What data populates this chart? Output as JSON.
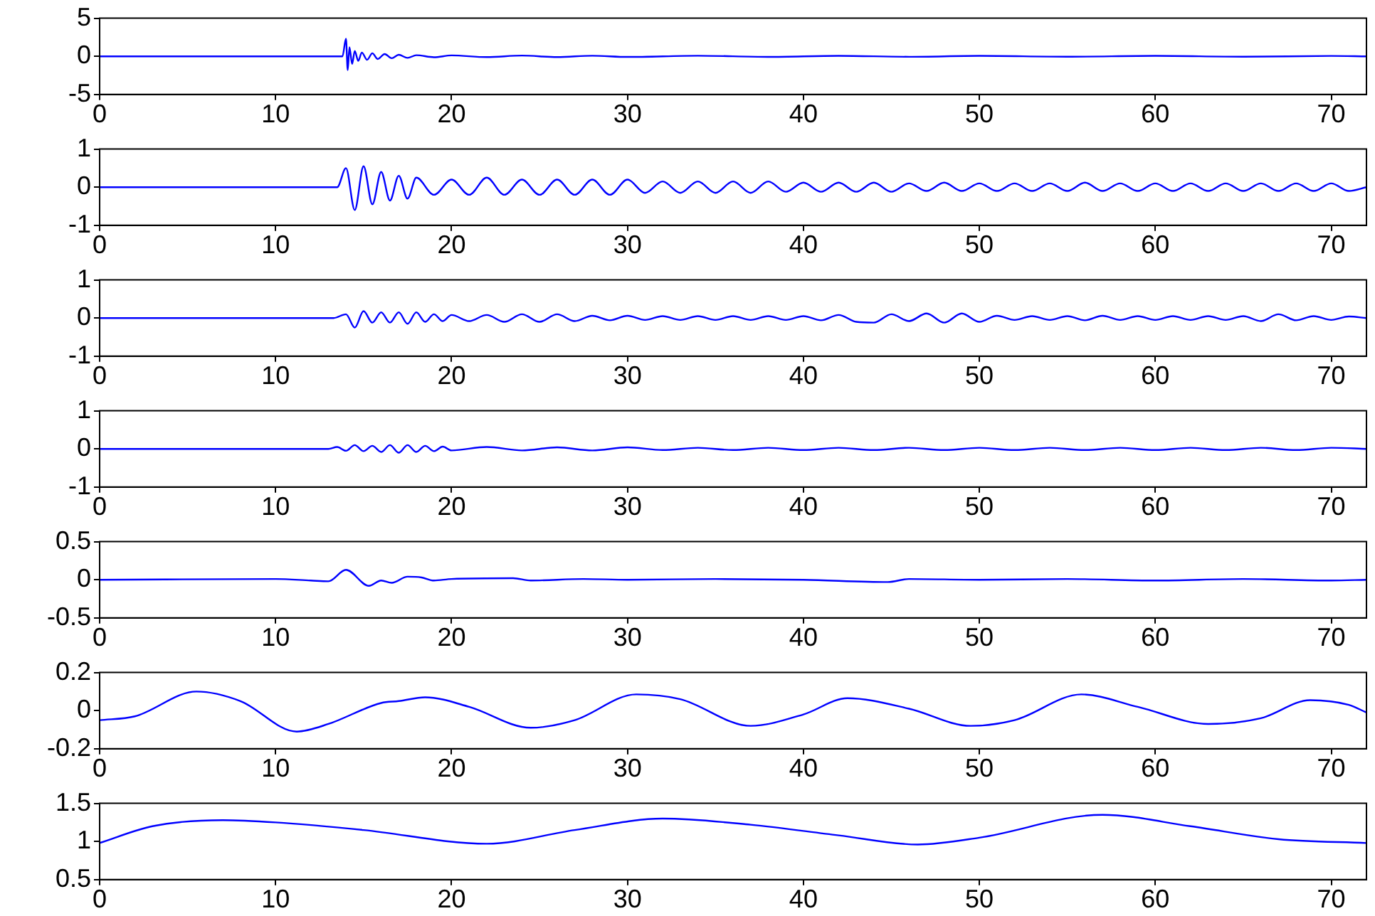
{
  "chart_data": [
    {
      "type": "line",
      "x": [
        0,
        13.8,
        14,
        14.1,
        14.2,
        14.35,
        14.5,
        14.7,
        14.9,
        15.2,
        15.5,
        15.8,
        16.2,
        16.6,
        17,
        17.5,
        18,
        19,
        20,
        22,
        24,
        26,
        28,
        30,
        34,
        38,
        42,
        46,
        50,
        55,
        60,
        65,
        70,
        72
      ],
      "xlim": [
        0,
        72
      ],
      "xticks": [
        0,
        10,
        20,
        30,
        40,
        50,
        60,
        70
      ],
      "ylim": [
        -5,
        5
      ],
      "yticks": [
        -5,
        0,
        5
      ],
      "series": [
        {
          "color": "#0000ff",
          "values": [
            0,
            0,
            2.3,
            -1.8,
            1.2,
            -1.0,
            0.7,
            -0.6,
            0.5,
            -0.45,
            0.4,
            -0.35,
            0.3,
            -0.25,
            0.2,
            -0.2,
            0.15,
            -0.12,
            0.12,
            -0.1,
            0.1,
            -0.1,
            0.08,
            -0.08,
            0.08,
            -0.07,
            0.07,
            -0.06,
            0.06,
            -0.05,
            0.06,
            -0.05,
            0.05,
            0
          ]
        }
      ]
    },
    {
      "type": "line",
      "x": [
        0,
        13.5,
        14,
        14.5,
        15,
        15.5,
        16,
        16.5,
        17,
        17.5,
        18,
        19,
        20,
        21,
        22,
        23,
        24,
        25,
        26,
        27,
        28,
        29,
        30,
        31,
        32,
        33,
        34,
        35,
        36,
        37,
        38,
        39,
        40,
        41,
        42,
        43,
        44,
        45,
        46,
        47,
        48,
        49,
        50,
        51,
        52,
        53,
        54,
        55,
        56,
        57,
        58,
        59,
        60,
        61,
        62,
        63,
        64,
        65,
        66,
        67,
        68,
        69,
        70,
        71,
        72
      ],
      "xlim": [
        0,
        72
      ],
      "xticks": [
        0,
        10,
        20,
        30,
        40,
        50,
        60,
        70
      ],
      "ylim": [
        -1,
        1
      ],
      "yticks": [
        -1,
        0,
        1
      ],
      "series": [
        {
          "color": "#0000ff",
          "values": [
            0,
            0,
            0.5,
            -0.6,
            0.55,
            -0.45,
            0.4,
            -0.35,
            0.3,
            -0.3,
            0.25,
            -0.2,
            0.2,
            -0.2,
            0.25,
            -0.2,
            0.2,
            -0.2,
            0.2,
            -0.2,
            0.2,
            -0.2,
            0.2,
            -0.15,
            0.15,
            -0.15,
            0.15,
            -0.15,
            0.15,
            -0.15,
            0.15,
            -0.12,
            0.12,
            -0.12,
            0.12,
            -0.12,
            0.12,
            -0.12,
            0.1,
            -0.1,
            0.12,
            -0.1,
            0.1,
            -0.1,
            0.1,
            -0.1,
            0.1,
            -0.1,
            0.12,
            -0.1,
            0.1,
            -0.1,
            0.1,
            -0.1,
            0.1,
            -0.1,
            0.1,
            -0.1,
            0.1,
            -0.1,
            0.1,
            -0.1,
            0.1,
            -0.1,
            0
          ]
        }
      ]
    },
    {
      "type": "line",
      "x": [
        0,
        13.3,
        14,
        14.5,
        15,
        15.5,
        16,
        16.5,
        17,
        17.5,
        18,
        18.5,
        19,
        19.5,
        20,
        21,
        22,
        23,
        24,
        25,
        26,
        27,
        28,
        29,
        30,
        31,
        32,
        33,
        34,
        35,
        36,
        37,
        38,
        39,
        40,
        41,
        42,
        43,
        44,
        45,
        46,
        47,
        48,
        49,
        50,
        51,
        52,
        53,
        54,
        55,
        56,
        57,
        58,
        59,
        60,
        61,
        62,
        63,
        64,
        65,
        66,
        67,
        68,
        69,
        70,
        71,
        72
      ],
      "xlim": [
        0,
        72
      ],
      "xticks": [
        0,
        10,
        20,
        30,
        40,
        50,
        60,
        70
      ],
      "ylim": [
        -1,
        1
      ],
      "yticks": [
        -1,
        0,
        1
      ],
      "series": [
        {
          "color": "#0000ff",
          "values": [
            0,
            0,
            0.1,
            -0.25,
            0.18,
            -0.12,
            0.15,
            -0.12,
            0.15,
            -0.15,
            0.15,
            -0.1,
            0.1,
            -0.08,
            0.08,
            -0.08,
            0.08,
            -0.1,
            0.1,
            -0.1,
            0.1,
            -0.08,
            0.06,
            -0.06,
            0.06,
            -0.05,
            0.05,
            -0.05,
            0.05,
            -0.05,
            0.05,
            -0.05,
            0.05,
            -0.05,
            0.05,
            -0.06,
            0.08,
            -0.1,
            -0.12,
            0.1,
            -0.08,
            0.12,
            -0.12,
            0.12,
            -0.1,
            0.06,
            -0.05,
            0.05,
            -0.05,
            0.05,
            -0.06,
            0.06,
            -0.05,
            0.05,
            -0.05,
            0.05,
            -0.05,
            0.05,
            -0.05,
            0.05,
            -0.08,
            0.1,
            -0.06,
            0.05,
            -0.05,
            0.04,
            0
          ]
        }
      ]
    },
    {
      "type": "line",
      "x": [
        0,
        13,
        13.5,
        14,
        14.5,
        15,
        15.5,
        16,
        16.5,
        17,
        17.5,
        18,
        18.5,
        19,
        19.5,
        20,
        22,
        24,
        26,
        28,
        30,
        32,
        34,
        36,
        38,
        40,
        42,
        44,
        46,
        48,
        50,
        52,
        54,
        56,
        58,
        60,
        62,
        64,
        66,
        68,
        70,
        72
      ],
      "xlim": [
        0,
        72
      ],
      "xticks": [
        0,
        10,
        20,
        30,
        40,
        50,
        60,
        70
      ],
      "ylim": [
        -1,
        1
      ],
      "yticks": [
        -1,
        0,
        1
      ],
      "series": [
        {
          "color": "#0000ff",
          "values": [
            0,
            0,
            0.05,
            -0.05,
            0.1,
            -0.06,
            0.08,
            -0.08,
            0.1,
            -0.1,
            0.1,
            -0.08,
            0.08,
            -0.06,
            0.06,
            -0.04,
            0.05,
            -0.04,
            0.04,
            -0.04,
            0.04,
            -0.03,
            0.03,
            -0.03,
            0.03,
            -0.03,
            0.03,
            -0.03,
            0.03,
            -0.03,
            0.03,
            -0.03,
            0.03,
            -0.03,
            0.03,
            -0.03,
            0.03,
            -0.03,
            0.03,
            -0.03,
            0.03,
            0
          ]
        }
      ]
    },
    {
      "type": "line",
      "x": [
        0,
        10,
        12,
        13,
        14,
        15.3,
        16,
        16.6,
        17.5,
        18.3,
        19,
        20,
        23.5,
        24.5,
        27.5,
        30,
        35,
        40,
        44.8,
        46,
        50,
        55,
        60,
        65,
        70,
        72
      ],
      "xlim": [
        0,
        72
      ],
      "xticks": [
        0,
        10,
        20,
        30,
        40,
        50,
        60,
        70
      ],
      "ylim": [
        -0.5,
        0.5
      ],
      "yticks": [
        -0.5,
        0,
        0.5
      ],
      "series": [
        {
          "color": "#0000ff",
          "values": [
            0,
            0.01,
            -0.01,
            -0.02,
            0.13,
            -0.08,
            -0.01,
            -0.04,
            0.04,
            0.03,
            -0.01,
            0.01,
            0.02,
            -0.01,
            0.01,
            0,
            0.01,
            0,
            -0.03,
            0.01,
            0,
            0.01,
            -0.01,
            0.01,
            -0.01,
            0
          ]
        }
      ]
    },
    {
      "type": "line",
      "x": [
        0,
        2,
        5.5,
        8,
        11.2,
        13,
        16,
        17,
        18.5,
        21,
        24.5,
        27,
        30.5,
        33,
        37,
        40,
        42.5,
        46,
        49.5,
        52,
        55.8,
        59,
        63,
        66,
        68.8,
        71,
        72
      ],
      "xlim": [
        0,
        72
      ],
      "xticks": [
        0,
        10,
        20,
        30,
        40,
        50,
        60,
        70
      ],
      "ylim": [
        -0.2,
        0.2
      ],
      "yticks": [
        -0.2,
        0,
        0.2
      ],
      "series": [
        {
          "color": "#0000ff",
          "values": [
            -0.05,
            -0.03,
            0.1,
            0.05,
            -0.11,
            -0.07,
            0.04,
            0.05,
            0.07,
            0.02,
            -0.09,
            -0.05,
            0.085,
            0.06,
            -0.08,
            -0.02,
            0.065,
            0.01,
            -0.08,
            -0.05,
            0.085,
            0.02,
            -0.07,
            -0.04,
            0.055,
            0.03,
            -0.01
          ]
        }
      ]
    },
    {
      "type": "line",
      "x": [
        0,
        3,
        7,
        10,
        15,
        22,
        27,
        32,
        37,
        42,
        46.5,
        50,
        57,
        62,
        67,
        72
      ],
      "xlim": [
        0,
        72
      ],
      "xticks": [
        0,
        10,
        20,
        30,
        40,
        50,
        60,
        70
      ],
      "ylim": [
        0.5,
        1.5
      ],
      "yticks": [
        0.5,
        1,
        1.5
      ],
      "series": [
        {
          "color": "#0000ff",
          "values": [
            0.98,
            1.2,
            1.28,
            1.25,
            1.15,
            0.97,
            1.15,
            1.3,
            1.22,
            1.08,
            0.96,
            1.05,
            1.35,
            1.2,
            1.03,
            0.98
          ]
        }
      ]
    }
  ]
}
